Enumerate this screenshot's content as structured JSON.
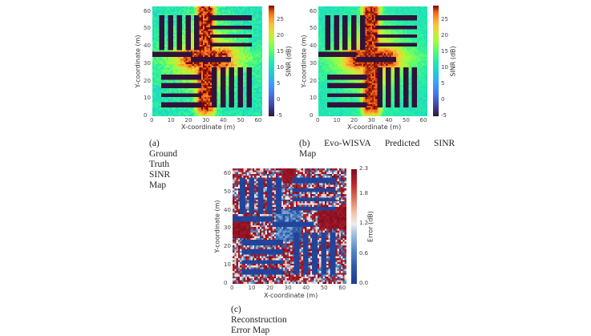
{
  "figure": {
    "panels": [
      {
        "id": "a",
        "caption": "(a) Ground Truth SINR Map",
        "xlabel": "X-coordinate (m)",
        "ylabel": "Y-coordinate (m)",
        "colorbar_label": "SINR (dB)"
      },
      {
        "id": "b",
        "caption_line1": "(b)  Evo-WISVA  Predicted  SINR",
        "caption_line2": "Map",
        "xlabel": "X-coordinate (m)",
        "ylabel": "Y-coordinate (m)",
        "colorbar_label": "SINR (dB)"
      },
      {
        "id": "c",
        "caption": "(c) Reconstruction Error Map",
        "xlabel": "X-coordinate (m)",
        "ylabel": "Y-coordinate (m)",
        "colorbar_label": "Error (dB)"
      }
    ],
    "xticks": [
      "0",
      "10",
      "20",
      "30",
      "40",
      "50",
      "60"
    ],
    "yticks": [
      "0",
      "10",
      "20",
      "30",
      "40",
      "50",
      "60"
    ],
    "sinr_cbar_ticks": [
      "25",
      "20",
      "15",
      "10",
      "5",
      "0",
      "-5"
    ],
    "error_cbar_ticks": [
      "2.3",
      "1.8",
      "1.2",
      "0.6",
      "0.0"
    ]
  },
  "chart_data": [
    {
      "type": "heatmap",
      "title": "(a) Ground Truth SINR Map",
      "xlabel": "X-coordinate (m)",
      "ylabel": "Y-coordinate (m)",
      "colorbar_label": "SINR (dB)",
      "colormap": "turbo",
      "xlim": [
        0,
        63
      ],
      "ylim": [
        0,
        63
      ],
      "clim": [
        -5,
        29
      ],
      "xticks": [
        0,
        10,
        20,
        30,
        40,
        50,
        60
      ],
      "yticks": [
        0,
        10,
        20,
        30,
        40,
        50,
        60
      ],
      "colorbar_ticks": [
        -5,
        0,
        5,
        10,
        15,
        20,
        25
      ],
      "description": "Indoor SINR map with cross-shaped high-SINR (~27 dB) corridor centered near x=30,y=33; rack-like obstacles (~-5 dB) arranged as 4 quadrant groups; background ~10-12 dB.",
      "obstacles": [
        {
          "x": [
            4.5,
            6.5
          ],
          "y": [
            38,
            58
          ]
        },
        {
          "x": [
            9.5,
            11.5
          ],
          "y": [
            38,
            58
          ]
        },
        {
          "x": [
            14.5,
            16.5
          ],
          "y": [
            38,
            58
          ]
        },
        {
          "x": [
            19.5,
            21.5
          ],
          "y": [
            38,
            58
          ]
        },
        {
          "x": [
            24.5,
            26.5
          ],
          "y": [
            38,
            58
          ]
        },
        {
          "x": [
            33,
            57
          ],
          "y": [
            55.5,
            57.5
          ]
        },
        {
          "x": [
            33,
            57
          ],
          "y": [
            50,
            52
          ]
        },
        {
          "x": [
            33,
            57
          ],
          "y": [
            45,
            47
          ]
        },
        {
          "x": [
            33,
            57
          ],
          "y": [
            40,
            42
          ]
        },
        {
          "x": [
            0,
            22
          ],
          "y": [
            34.5,
            36.5
          ]
        },
        {
          "x": [
            22,
            45
          ],
          "y": [
            31.5,
            33.5
          ]
        },
        {
          "x": [
            5,
            28
          ],
          "y": [
            21.5,
            23.5
          ]
        },
        {
          "x": [
            5,
            28
          ],
          "y": [
            16.5,
            18.5
          ]
        },
        {
          "x": [
            5,
            28
          ],
          "y": [
            11,
            13
          ]
        },
        {
          "x": [
            5,
            28
          ],
          "y": [
            5.5,
            7.5
          ]
        },
        {
          "x": [
            34.5,
            36.5
          ],
          "y": [
            5,
            28
          ]
        },
        {
          "x": [
            39.5,
            41.5
          ],
          "y": [
            5,
            28
          ]
        },
        {
          "x": [
            44.5,
            46.5
          ],
          "y": [
            5,
            28
          ]
        },
        {
          "x": [
            49.5,
            51.5
          ],
          "y": [
            5,
            28
          ]
        },
        {
          "x": [
            54.5,
            56.5
          ],
          "y": [
            5,
            28
          ]
        }
      ]
    },
    {
      "type": "heatmap",
      "title": "(b) Evo-WISVA Predicted SINR Map",
      "xlabel": "X-coordinate (m)",
      "ylabel": "Y-coordinate (m)",
      "colorbar_label": "SINR (dB)",
      "colormap": "turbo",
      "xlim": [
        0,
        63
      ],
      "ylim": [
        0,
        63
      ],
      "clim": [
        -5,
        29
      ],
      "xticks": [
        0,
        10,
        20,
        30,
        40,
        50,
        60
      ],
      "yticks": [
        0,
        10,
        20,
        30,
        40,
        50,
        60
      ],
      "colorbar_ticks": [
        -5,
        0,
        5,
        10,
        15,
        20,
        25
      ],
      "description": "Predicted SINR closely matches ground truth; same obstacle layout and central high-SINR cross."
    },
    {
      "type": "heatmap",
      "title": "(c) Reconstruction Error Map",
      "xlabel": "X-coordinate (m)",
      "ylabel": "Y-coordinate (m)",
      "colorbar_label": "Error (dB)",
      "colormap": "RdBu_r",
      "xlim": [
        0,
        63
      ],
      "ylim": [
        0,
        63
      ],
      "clim": [
        0.0,
        2.3
      ],
      "xticks": [
        0,
        10,
        20,
        30,
        40,
        50,
        60
      ],
      "yticks": [
        0,
        10,
        20,
        30,
        40,
        50,
        60
      ],
      "colorbar_ticks": [
        0.0,
        0.6,
        1.2,
        1.8,
        2.3
      ],
      "description": "Near-zero error (blue) on obstacles and central corridor; noisy mixed error elsewhere; saturated high error (~2.3 dB) patches at left-middle (x 0-10, y 25-35), top-center (x 28-35, y 55-63) and right-middle (x 48-63, y 30-42)."
    }
  ]
}
